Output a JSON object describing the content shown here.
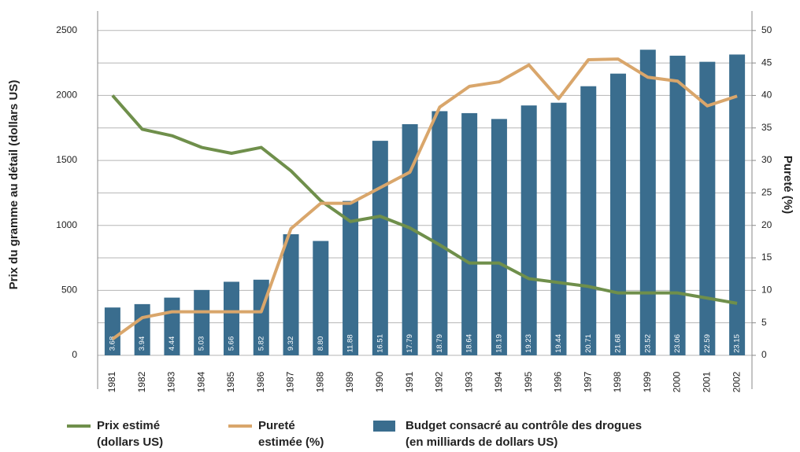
{
  "chart_data": {
    "type": "bar_line",
    "categories": [
      "1981",
      "1982",
      "1983",
      "1984",
      "1985",
      "1986",
      "1987",
      "1988",
      "1989",
      "1990",
      "1991",
      "1992",
      "1993",
      "1994",
      "1995",
      "1996",
      "1997",
      "1998",
      "1999",
      "2000",
      "2001",
      "2002"
    ],
    "ylabel": "Prix du gramme au détail (dollars US)",
    "y2label": "Pureté (%)",
    "ylim": [
      0,
      2650
    ],
    "yticks": [
      0,
      500,
      1000,
      1500,
      2000,
      2500
    ],
    "y2lim": [
      0,
      53
    ],
    "y2ticks": [
      0,
      5,
      10,
      15,
      20,
      25,
      30,
      35,
      40,
      45,
      50
    ],
    "y3lim": [
      0,
      26.5
    ],
    "grid": true,
    "series": [
      {
        "name": [
          "Prix estimé",
          "(dollars US)"
        ],
        "kind": "line",
        "axis": "y",
        "color": "#6f8f4b",
        "values": [
          2000,
          1740,
          1690,
          1600,
          1555,
          1600,
          1420,
          1190,
          1030,
          1070,
          980,
          850,
          710,
          710,
          590,
          560,
          530,
          480,
          480,
          480,
          440,
          400
        ]
      },
      {
        "name": [
          "Pureté",
          "estimée (%)"
        ],
        "kind": "line",
        "axis": "y2",
        "color": "#d9a66b",
        "values": [
          2.5,
          5.8,
          6.7,
          6.7,
          6.7,
          6.7,
          19.5,
          23.4,
          23.4,
          25.8,
          28.2,
          38.2,
          41.4,
          42.1,
          44.7,
          39.5,
          45.5,
          45.6,
          42.8,
          42.2,
          38.4,
          39.9
        ]
      },
      {
        "name": [
          "Budget consacré au contrôle des drogues",
          "(en milliards de dollars US)"
        ],
        "kind": "bar",
        "axis": "y3",
        "color": "#3a6d8e",
        "values": [
          3.68,
          3.94,
          4.44,
          5.03,
          5.66,
          5.82,
          9.32,
          8.8,
          11.88,
          16.51,
          17.79,
          18.79,
          18.64,
          18.19,
          19.23,
          19.44,
          20.71,
          21.68,
          23.52,
          23.06,
          22.59,
          23.15
        ],
        "value_labels": [
          "3.68",
          "3.94",
          "4.44",
          "5.03",
          "5.66",
          "5.82",
          "9.32",
          "8.80",
          "11.88",
          "16.51",
          "17.79",
          "18.79",
          "18.64",
          "18.19",
          "19.23",
          "19.44",
          "20.71",
          "21.68",
          "23.52",
          "23.06",
          "22.59",
          "23.15"
        ]
      }
    ]
  }
}
